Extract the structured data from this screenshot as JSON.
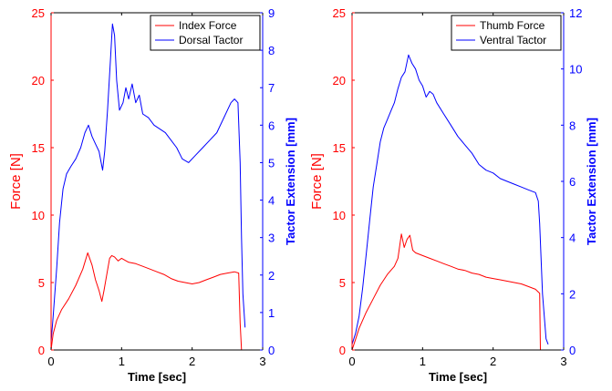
{
  "colors": {
    "force": "#ff0000",
    "tactor": "#0000ff",
    "axis": "#000000",
    "background": "#ffffff"
  },
  "chart_data": [
    {
      "type": "line",
      "xlabel": "Time [sec]",
      "ylabel_left": "Force [N]",
      "ylabel_right": "Tactor Extension [mm]",
      "xlim": [
        0,
        3
      ],
      "ylim_left": [
        0,
        25
      ],
      "ylim_right": [
        0,
        9
      ],
      "xticks": [
        0,
        1,
        2,
        3
      ],
      "yticks_left": [
        0,
        5,
        10,
        15,
        20,
        25
      ],
      "yticks_right": [
        0,
        1,
        2,
        3,
        4,
        5,
        6,
        7,
        8,
        9
      ],
      "legend_position": "top-right",
      "grid": false,
      "series": [
        {
          "name": "Index Force",
          "axis": "left",
          "color": "#ff0000",
          "x": [
            0,
            0.03,
            0.08,
            0.15,
            0.25,
            0.35,
            0.45,
            0.52,
            0.58,
            0.63,
            0.68,
            0.72,
            0.75,
            0.79,
            0.83,
            0.86,
            0.9,
            0.95,
            1.0,
            1.1,
            1.2,
            1.3,
            1.4,
            1.5,
            1.6,
            1.7,
            1.8,
            1.9,
            2.0,
            2.1,
            2.2,
            2.3,
            2.4,
            2.5,
            2.6,
            2.66,
            2.68,
            2.7
          ],
          "y": [
            0,
            1.2,
            2.2,
            3.0,
            3.8,
            4.8,
            6.0,
            7.2,
            6.3,
            5.2,
            4.4,
            3.6,
            4.4,
            5.6,
            6.8,
            7.0,
            6.9,
            6.6,
            6.8,
            6.5,
            6.4,
            6.2,
            6.0,
            5.8,
            5.6,
            5.3,
            5.1,
            5.0,
            4.9,
            5.0,
            5.2,
            5.4,
            5.6,
            5.7,
            5.8,
            5.7,
            2.0,
            0.0
          ]
        },
        {
          "name": "Dorsal Tactor",
          "axis": "right",
          "color": "#0000ff",
          "x": [
            0,
            0.03,
            0.08,
            0.12,
            0.17,
            0.22,
            0.28,
            0.35,
            0.42,
            0.48,
            0.53,
            0.58,
            0.63,
            0.68,
            0.71,
            0.73,
            0.76,
            0.8,
            0.84,
            0.87,
            0.9,
            0.93,
            0.97,
            1.02,
            1.06,
            1.1,
            1.15,
            1.2,
            1.25,
            1.3,
            1.38,
            1.46,
            1.54,
            1.62,
            1.7,
            1.78,
            1.86,
            1.95,
            2.05,
            2.15,
            2.25,
            2.35,
            2.45,
            2.55,
            2.6,
            2.65,
            2.68,
            2.7,
            2.72,
            2.75
          ],
          "y": [
            0.2,
            0.9,
            2.2,
            3.4,
            4.3,
            4.7,
            4.9,
            5.1,
            5.4,
            5.8,
            6.0,
            5.7,
            5.5,
            5.3,
            5.0,
            4.8,
            5.3,
            6.4,
            7.7,
            8.7,
            8.4,
            7.2,
            6.4,
            6.6,
            7.0,
            6.7,
            7.1,
            6.6,
            6.8,
            6.3,
            6.2,
            6.0,
            5.9,
            5.8,
            5.6,
            5.4,
            5.1,
            5.0,
            5.2,
            5.4,
            5.6,
            5.8,
            6.2,
            6.6,
            6.7,
            6.6,
            5.0,
            3.0,
            1.5,
            0.6
          ]
        }
      ]
    },
    {
      "type": "line",
      "xlabel": "Time [sec]",
      "ylabel_left": "Force [N]",
      "ylabel_right": "Tactor Extension [mm]",
      "xlim": [
        0,
        3
      ],
      "ylim_left": [
        0,
        25
      ],
      "ylim_right": [
        0,
        12
      ],
      "xticks": [
        0,
        1,
        2,
        3
      ],
      "yticks_left": [
        0,
        5,
        10,
        15,
        20,
        25
      ],
      "yticks_right": [
        0,
        2,
        4,
        6,
        8,
        10,
        12
      ],
      "legend_position": "top-right",
      "grid": false,
      "series": [
        {
          "name": "Thumb Force",
          "axis": "left",
          "color": "#ff0000",
          "x": [
            0,
            0.05,
            0.1,
            0.2,
            0.3,
            0.4,
            0.5,
            0.6,
            0.65,
            0.7,
            0.74,
            0.78,
            0.82,
            0.86,
            0.9,
            1.0,
            1.1,
            1.2,
            1.3,
            1.4,
            1.5,
            1.6,
            1.7,
            1.8,
            1.9,
            2.0,
            2.1,
            2.2,
            2.3,
            2.4,
            2.5,
            2.6,
            2.64,
            2.66,
            2.67
          ],
          "y": [
            0,
            0.8,
            1.6,
            2.8,
            3.8,
            4.8,
            5.6,
            6.2,
            6.8,
            8.6,
            7.6,
            8.2,
            8.5,
            7.4,
            7.2,
            7.0,
            6.8,
            6.6,
            6.4,
            6.2,
            6.0,
            5.9,
            5.7,
            5.6,
            5.4,
            5.3,
            5.2,
            5.1,
            5.0,
            4.9,
            4.7,
            4.5,
            4.3,
            4.2,
            0.0
          ]
        },
        {
          "name": "Ventral Tactor",
          "axis": "right",
          "color": "#0000ff",
          "x": [
            0,
            0.05,
            0.1,
            0.15,
            0.2,
            0.25,
            0.3,
            0.35,
            0.4,
            0.45,
            0.5,
            0.55,
            0.6,
            0.65,
            0.7,
            0.75,
            0.8,
            0.85,
            0.9,
            0.95,
            1.0,
            1.05,
            1.1,
            1.15,
            1.2,
            1.3,
            1.4,
            1.5,
            1.6,
            1.7,
            1.8,
            1.9,
            2.0,
            2.1,
            2.2,
            2.3,
            2.4,
            2.5,
            2.6,
            2.64,
            2.66,
            2.7,
            2.75,
            2.78
          ],
          "y": [
            0.2,
            0.6,
            1.2,
            2.2,
            3.4,
            4.6,
            5.8,
            6.6,
            7.4,
            7.9,
            8.2,
            8.5,
            8.8,
            9.3,
            9.7,
            9.9,
            10.5,
            10.2,
            10.0,
            9.6,
            9.4,
            9.0,
            9.2,
            9.1,
            8.8,
            8.4,
            8.0,
            7.6,
            7.3,
            7.0,
            6.6,
            6.4,
            6.3,
            6.1,
            6.0,
            5.9,
            5.8,
            5.7,
            5.6,
            5.3,
            4.5,
            2.0,
            0.4,
            0.2
          ]
        }
      ]
    }
  ]
}
